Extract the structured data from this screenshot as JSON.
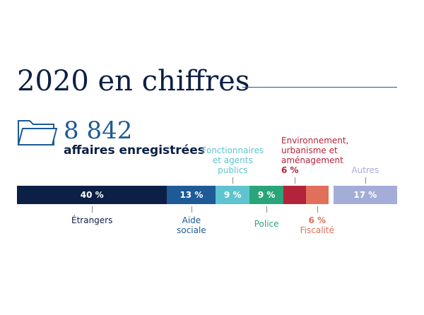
{
  "chart_data": {
    "type": "stacked-bar",
    "title": "2020 en chiffres",
    "stat": "8 842",
    "stat_label": "affaires enregistrées",
    "categories": [
      "Étrangers",
      "Aide sociale",
      "Fonctionnaires et agents publics",
      "Police",
      "Environnement, urbanisme et aménagement",
      "Fiscalité",
      "Autres"
    ],
    "values": [
      40,
      13,
      9,
      9,
      6,
      6,
      17
    ],
    "value_labels": [
      "40 %",
      "13 %",
      "9 %",
      "9 %",
      "6 %",
      "6 %",
      "17 %"
    ],
    "colors": [
      "#0c1f45",
      "#1e5a96",
      "#5ec4cf",
      "#2aa57a",
      "#b3233a",
      "#e0705a",
      "#a4add8"
    ]
  }
}
